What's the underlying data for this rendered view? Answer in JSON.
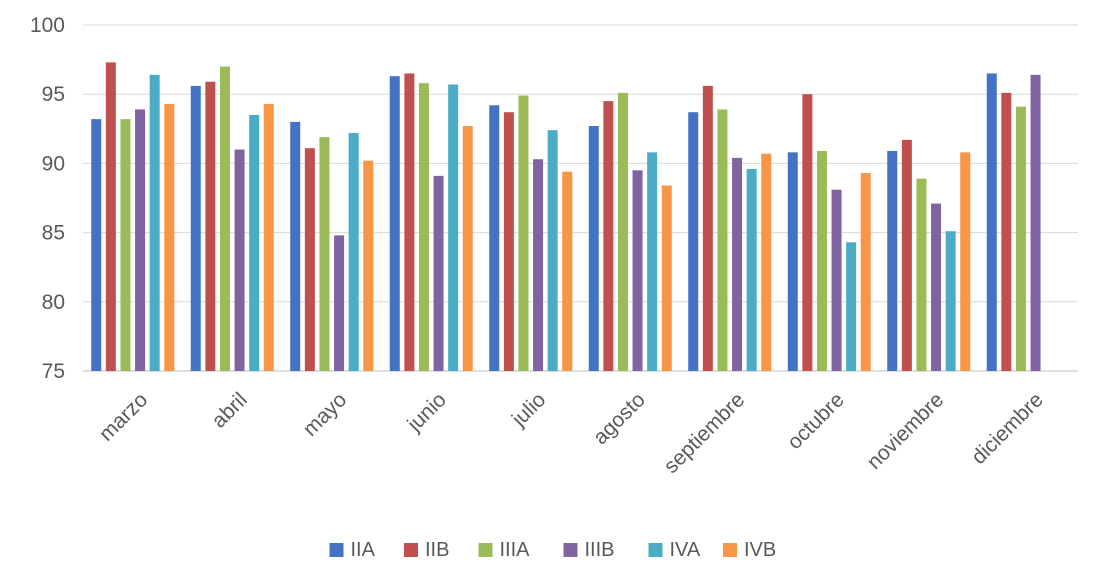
{
  "chart_data": {
    "type": "bar",
    "title": "",
    "xlabel": "",
    "ylabel": "",
    "ylim": [
      75,
      100
    ],
    "yticks": [
      75,
      80,
      85,
      90,
      95,
      100
    ],
    "grid": true,
    "legend_position": "bottom",
    "categories": [
      "marzo",
      "abril",
      "mayo",
      "junio",
      "julio",
      "agosto",
      "septiembre",
      "octubre",
      "noviembre",
      "diciembre"
    ],
    "series": [
      {
        "name": "IIA",
        "color": "#4472C4",
        "values": [
          93.2,
          95.6,
          93.0,
          96.3,
          94.2,
          92.7,
          93.7,
          90.8,
          90.9,
          96.5
        ]
      },
      {
        "name": "IIB",
        "color": "#C0504D",
        "values": [
          97.3,
          95.9,
          91.1,
          96.5,
          93.7,
          94.5,
          95.6,
          95.0,
          91.7,
          95.1
        ]
      },
      {
        "name": "IIIA",
        "color": "#9BBB59",
        "values": [
          93.2,
          97.0,
          91.9,
          95.8,
          94.9,
          95.1,
          93.9,
          90.9,
          88.9,
          94.1
        ]
      },
      {
        "name": "IIIB",
        "color": "#8064A2",
        "values": [
          93.9,
          91.0,
          84.8,
          89.1,
          90.3,
          89.5,
          90.4,
          88.1,
          87.1,
          96.4
        ]
      },
      {
        "name": "IVA",
        "color": "#4BACC6",
        "values": [
          96.4,
          93.5,
          92.2,
          95.7,
          92.4,
          90.8,
          89.6,
          84.3,
          85.1,
          null
        ]
      },
      {
        "name": "IVB",
        "color": "#F79646",
        "values": [
          94.3,
          94.3,
          90.2,
          92.7,
          89.4,
          88.4,
          90.7,
          89.3,
          90.8,
          null
        ]
      }
    ]
  }
}
